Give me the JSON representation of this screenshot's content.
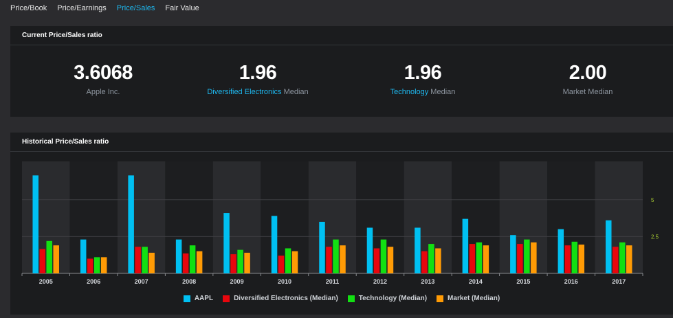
{
  "tabs": [
    {
      "label": "Price/Book",
      "active": false
    },
    {
      "label": "Price/Earnings",
      "active": false
    },
    {
      "label": "Price/Sales",
      "active": true
    },
    {
      "label": "Fair Value",
      "active": false
    }
  ],
  "current": {
    "title": "Current Price/Sales ratio",
    "stats": [
      {
        "value": "3.6068",
        "label": "Apple Inc.",
        "link": "",
        "suffix": ""
      },
      {
        "value": "1.96",
        "label": "",
        "link": "Diversified Electronics",
        "suffix": " Median"
      },
      {
        "value": "1.96",
        "label": "",
        "link": "Technology",
        "suffix": " Median"
      },
      {
        "value": "2.00",
        "label": "Market Median",
        "link": "",
        "suffix": ""
      }
    ]
  },
  "historical": {
    "title": "Historical Price/Sales ratio"
  },
  "colors": {
    "AAPL": "#00c0f2",
    "Diversified Electronics (Median)": "#e8060d",
    "Technology (Median)": "#12e012",
    "Market (Median)": "#ff9b05"
  },
  "chart_data": {
    "type": "bar",
    "categories": [
      "2005",
      "2006",
      "2007",
      "2008",
      "2009",
      "2010",
      "2011",
      "2012",
      "2013",
      "2014",
      "2015",
      "2016",
      "2017"
    ],
    "ylim": [
      0,
      7.6
    ],
    "yticks": [
      2.5,
      5
    ],
    "ytick_labels": [
      "2.5",
      "5"
    ],
    "legend_position": "bottom",
    "series": [
      {
        "name": "AAPL",
        "values": [
          6.65,
          2.3,
          6.65,
          2.3,
          4.1,
          3.9,
          3.5,
          3.1,
          3.1,
          3.7,
          2.6,
          3.0,
          3.6
        ]
      },
      {
        "name": "Diversified Electronics (Median)",
        "values": [
          1.65,
          1.0,
          1.8,
          1.35,
          1.3,
          1.2,
          1.8,
          1.7,
          1.5,
          2.0,
          2.0,
          1.9,
          1.8
        ]
      },
      {
        "name": "Technology (Median)",
        "values": [
          2.2,
          1.1,
          1.8,
          1.9,
          1.6,
          1.7,
          2.3,
          2.3,
          2.0,
          2.1,
          2.3,
          2.15,
          2.1
        ]
      },
      {
        "name": "Market (Median)",
        "values": [
          1.9,
          1.1,
          1.4,
          1.5,
          1.4,
          1.5,
          1.9,
          1.8,
          1.7,
          1.9,
          2.1,
          1.95,
          1.9
        ]
      }
    ]
  }
}
